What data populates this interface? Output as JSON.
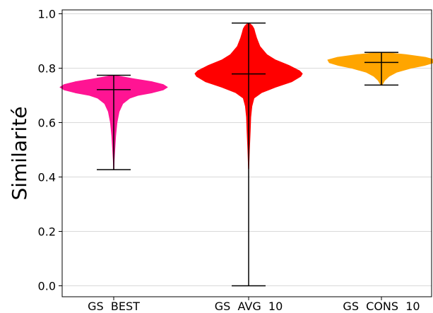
{
  "chart_data": {
    "type": "violin",
    "ylabel": "Similarité",
    "ylim": [
      0.0,
      1.0
    ],
    "yticks": [
      "0.0",
      "0.2",
      "0.4",
      "0.6",
      "0.8",
      "1.0"
    ],
    "grid": "horizontal",
    "categories": [
      "GS  BEST",
      "GS  AVG  10",
      "GS  CONS  10"
    ],
    "violins": [
      {
        "category": "GS  BEST",
        "color": "#ff1493",
        "min": 0.427,
        "max": 0.774,
        "median": 0.721,
        "density": [
          [
            0.427,
            0.002
          ],
          [
            0.46,
            0.008
          ],
          [
            0.5,
            0.02
          ],
          [
            0.55,
            0.035
          ],
          [
            0.6,
            0.06
          ],
          [
            0.64,
            0.1
          ],
          [
            0.67,
            0.17
          ],
          [
            0.69,
            0.3
          ],
          [
            0.7,
            0.45
          ],
          [
            0.71,
            0.72
          ],
          [
            0.72,
            0.92
          ],
          [
            0.73,
            1.0
          ],
          [
            0.74,
            0.92
          ],
          [
            0.75,
            0.72
          ],
          [
            0.76,
            0.4
          ],
          [
            0.77,
            0.12
          ],
          [
            0.774,
            0.02
          ]
        ]
      },
      {
        "category": "GS  AVG  10",
        "color": "#ff0000",
        "min": 0.0,
        "max": 0.966,
        "median": 0.779,
        "density": [
          [
            0.43,
            0.002
          ],
          [
            0.5,
            0.015
          ],
          [
            0.57,
            0.03
          ],
          [
            0.62,
            0.04
          ],
          [
            0.66,
            0.06
          ],
          [
            0.69,
            0.1
          ],
          [
            0.71,
            0.24
          ],
          [
            0.73,
            0.5
          ],
          [
            0.75,
            0.8
          ],
          [
            0.77,
            0.97
          ],
          [
            0.78,
            1.0
          ],
          [
            0.79,
            0.95
          ],
          [
            0.81,
            0.75
          ],
          [
            0.83,
            0.5
          ],
          [
            0.85,
            0.34
          ],
          [
            0.88,
            0.21
          ],
          [
            0.91,
            0.15
          ],
          [
            0.93,
            0.12
          ],
          [
            0.945,
            0.1
          ],
          [
            0.955,
            0.07
          ],
          [
            0.966,
            0.01
          ]
        ]
      },
      {
        "category": "GS  CONS  10",
        "color": "#ffa500",
        "min": 0.738,
        "max": 0.858,
        "median": 0.821,
        "density": [
          [
            0.738,
            0.01
          ],
          [
            0.755,
            0.06
          ],
          [
            0.77,
            0.14
          ],
          [
            0.785,
            0.28
          ],
          [
            0.8,
            0.55
          ],
          [
            0.81,
            0.8
          ],
          [
            0.82,
            0.97
          ],
          [
            0.83,
            1.0
          ],
          [
            0.84,
            0.82
          ],
          [
            0.85,
            0.45
          ],
          [
            0.858,
            0.05
          ]
        ]
      }
    ]
  }
}
